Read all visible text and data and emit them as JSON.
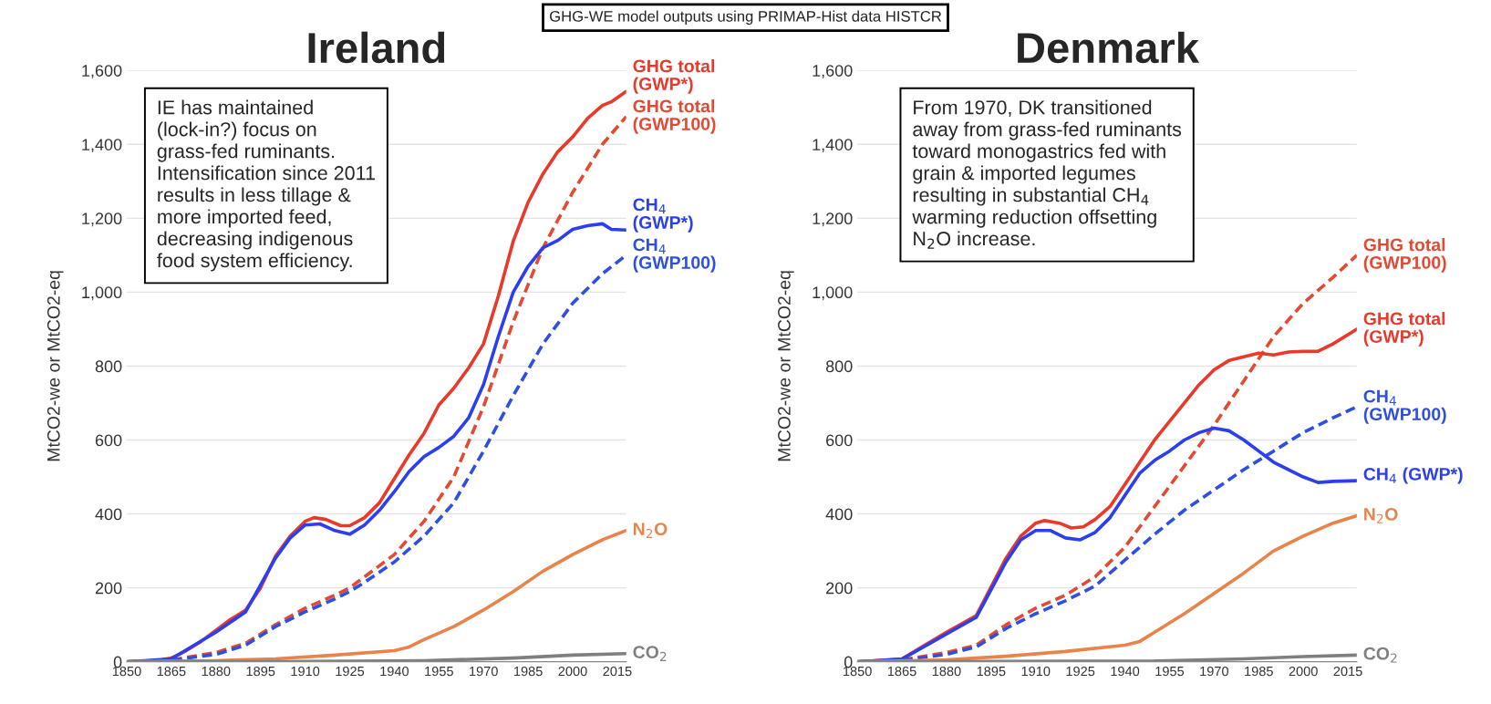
{
  "chart_data": [
    {
      "type": "line",
      "title": "Ireland",
      "ylabel": "MtCO2-we or MtCO2-eq",
      "xlim": [
        1850,
        2018
      ],
      "xticks": [
        1850,
        1865,
        1880,
        1895,
        1910,
        1925,
        1940,
        1955,
        1970,
        1985,
        2000,
        2015
      ],
      "ylim": [
        0,
        1600
      ],
      "yticks": [
        {
          "value": 0,
          "label": "0"
        },
        {
          "value": 200,
          "label": "200"
        },
        {
          "value": 400,
          "label": "400"
        },
        {
          "value": 600,
          "label": "600"
        },
        {
          "value": 800,
          "label": "800"
        },
        {
          "value": 1000,
          "label": "1,000"
        },
        {
          "value": 1200,
          "label": "1,200"
        },
        {
          "value": 1400,
          "label": "1,400"
        },
        {
          "value": 1600,
          "label": "1,600"
        }
      ],
      "grid": "y",
      "legend": false,
      "annotations": [
        "GHG-WE model outputs using PRIMAP-Hist data HISTCR",
        "IE has maintained\n(lock-in?) focus on\ngrass-fed ruminants.\nIntensification since 2011\nresults in less tillage &\nmore imported feed,\ndecreasing indigenous\nfood system efficiency."
      ],
      "series": [
        {
          "name": "GHG total\n(GWP*)",
          "color": "#e8392b",
          "line_style": "solid",
          "x": [
            1850,
            1860,
            1865,
            1870,
            1875,
            1880,
            1885,
            1890,
            1895,
            1900,
            1905,
            1910,
            1913,
            1917,
            1922,
            1925,
            1930,
            1935,
            1940,
            1945,
            1950,
            1955,
            1960,
            1965,
            1970,
            1975,
            1980,
            1985,
            1990,
            1995,
            2000,
            2005,
            2010,
            2013,
            2018
          ],
          "values": [
            0,
            2,
            10,
            30,
            55,
            85,
            115,
            140,
            200,
            285,
            340,
            380,
            390,
            385,
            368,
            368,
            390,
            430,
            495,
            560,
            618,
            695,
            740,
            795,
            860,
            990,
            1138,
            1243,
            1320,
            1380,
            1420,
            1470,
            1505,
            1515,
            1543
          ]
        },
        {
          "name": "GHG total\n(GWP100)",
          "color": "#e24a33",
          "line_style": "dashed",
          "x": [
            1850,
            1865,
            1880,
            1890,
            1900,
            1910,
            1920,
            1925,
            1930,
            1940,
            1950,
            1960,
            1970,
            1980,
            1990,
            2000,
            2010,
            2018
          ],
          "values": [
            0,
            5,
            25,
            50,
            100,
            145,
            180,
            200,
            230,
            290,
            380,
            500,
            690,
            920,
            1120,
            1270,
            1400,
            1475
          ]
        },
        {
          "name": "CH$_{4}$\n(GWP*)",
          "color": "#2b3ff0",
          "line_style": "solid",
          "x": [
            1850,
            1865,
            1880,
            1890,
            1900,
            1905,
            1910,
            1915,
            1920,
            1925,
            1930,
            1935,
            1940,
            1945,
            1950,
            1955,
            1960,
            1965,
            1970,
            1975,
            1980,
            1985,
            1990,
            1995,
            2000,
            2005,
            2010,
            2013,
            2018
          ],
          "values": [
            0,
            8,
            80,
            135,
            280,
            335,
            370,
            373,
            355,
            345,
            370,
            410,
            460,
            515,
            555,
            580,
            610,
            660,
            750,
            880,
            1000,
            1070,
            1120,
            1140,
            1170,
            1180,
            1185,
            1170,
            1168
          ]
        },
        {
          "name": "CH$_{4}$\n(GWP100)",
          "color": "#2f4fe0",
          "line_style": "dashed",
          "x": [
            1850,
            1865,
            1880,
            1890,
            1900,
            1910,
            1920,
            1925,
            1930,
            1940,
            1950,
            1960,
            1970,
            1980,
            1990,
            2000,
            2010,
            2018
          ],
          "values": [
            0,
            4,
            20,
            45,
            95,
            135,
            170,
            190,
            215,
            270,
            340,
            430,
            570,
            720,
            860,
            970,
            1050,
            1100
          ]
        },
        {
          "name": "N$_{2}$O",
          "color": "#e8844a",
          "line_style": "solid",
          "x": [
            1850,
            1880,
            1900,
            1920,
            1940,
            1945,
            1950,
            1960,
            1970,
            1980,
            1990,
            2000,
            2010,
            2018
          ],
          "values": [
            0,
            3,
            8,
            18,
            30,
            40,
            60,
            95,
            140,
            190,
            245,
            290,
            330,
            355
          ]
        },
        {
          "name": "CO$_{2}$",
          "color": "#7f7f7f",
          "line_style": "solid",
          "x": [
            1850,
            1900,
            1950,
            1980,
            2000,
            2018
          ],
          "values": [
            0,
            0,
            3,
            10,
            18,
            22
          ]
        }
      ]
    },
    {
      "type": "line",
      "title": "Denmark",
      "ylabel": "MtCO2-we or MtCO2-eq",
      "xlim": [
        1850,
        2018
      ],
      "xticks": [
        1850,
        1865,
        1880,
        1895,
        1910,
        1925,
        1940,
        1955,
        1970,
        1985,
        2000,
        2015
      ],
      "ylim": [
        0,
        1600
      ],
      "yticks": [
        {
          "value": 0,
          "label": "0"
        },
        {
          "value": 200,
          "label": "200"
        },
        {
          "value": 400,
          "label": "400"
        },
        {
          "value": 600,
          "label": "600"
        },
        {
          "value": 800,
          "label": "800"
        },
        {
          "value": 1000,
          "label": "1,000"
        },
        {
          "value": 1200,
          "label": "1,200"
        },
        {
          "value": 1400,
          "label": "1,400"
        },
        {
          "value": 1600,
          "label": "1,600"
        }
      ],
      "grid": "y",
      "legend": false,
      "annotations": [
        "From 1970, DK transitioned\naway from grass-fed ruminants\ntoward monogastrics fed with\ngrain & imported legumes\nresulting in substantial CH$_{4}$\nwarming reduction offsetting\nN$_{2}$O increase."
      ],
      "series": [
        {
          "name": "GHG total\n(GWP100)",
          "color": "#e24a33",
          "line_style": "dashed",
          "x": [
            1850,
            1865,
            1880,
            1890,
            1900,
            1910,
            1920,
            1930,
            1940,
            1950,
            1960,
            1970,
            1980,
            1990,
            2000,
            2010,
            2018
          ],
          "values": [
            0,
            5,
            25,
            45,
            100,
            145,
            180,
            230,
            310,
            420,
            530,
            640,
            760,
            880,
            970,
            1040,
            1100
          ]
        },
        {
          "name": "GHG total\n(GWP*)",
          "color": "#e8392b",
          "line_style": "solid",
          "x": [
            1850,
            1865,
            1880,
            1890,
            1900,
            1905,
            1910,
            1913,
            1918,
            1922,
            1926,
            1930,
            1935,
            1940,
            1945,
            1950,
            1955,
            1960,
            1965,
            1970,
            1975,
            1980,
            1985,
            1990,
            1995,
            2000,
            2005,
            2010,
            2018
          ],
          "values": [
            0,
            8,
            80,
            125,
            280,
            340,
            375,
            382,
            375,
            362,
            365,
            385,
            420,
            480,
            540,
            600,
            650,
            700,
            750,
            790,
            815,
            825,
            835,
            830,
            838,
            840,
            840,
            860,
            900
          ]
        },
        {
          "name": "CH$_{4}$\n(GWP100)",
          "color": "#2f4fe0",
          "line_style": "dashed",
          "x": [
            1850,
            1865,
            1880,
            1890,
            1900,
            1910,
            1920,
            1930,
            1940,
            1950,
            1960,
            1970,
            1980,
            1990,
            2000,
            2010,
            2018
          ],
          "values": [
            0,
            4,
            20,
            40,
            90,
            130,
            165,
            205,
            275,
            345,
            410,
            465,
            520,
            570,
            620,
            660,
            690
          ]
        },
        {
          "name": "CH$_{4}$ (GWP*)",
          "color": "#2b3ff0",
          "line_style": "solid",
          "x": [
            1850,
            1865,
            1880,
            1890,
            1900,
            1905,
            1910,
            1915,
            1920,
            1925,
            1930,
            1935,
            1940,
            1945,
            1950,
            1955,
            1960,
            1965,
            1970,
            1975,
            1980,
            1985,
            1990,
            2000,
            2005,
            2010,
            2018
          ],
          "values": [
            0,
            7,
            75,
            120,
            270,
            330,
            355,
            355,
            335,
            330,
            350,
            390,
            450,
            510,
            545,
            570,
            600,
            620,
            632,
            625,
            600,
            570,
            540,
            500,
            485,
            488,
            490
          ]
        },
        {
          "name": "N$_{2}$O",
          "color": "#e8844a",
          "line_style": "solid",
          "x": [
            1850,
            1880,
            1900,
            1920,
            1940,
            1945,
            1950,
            1960,
            1970,
            1980,
            1990,
            2000,
            2010,
            2018
          ],
          "values": [
            0,
            5,
            15,
            28,
            45,
            55,
            80,
            130,
            185,
            240,
            300,
            340,
            375,
            395
          ]
        },
        {
          "name": "CO$_{2}$",
          "color": "#7f7f7f",
          "line_style": "solid",
          "x": [
            1850,
            1950,
            1980,
            2000,
            2018
          ],
          "values": [
            0,
            2,
            8,
            14,
            18
          ]
        }
      ]
    }
  ]
}
